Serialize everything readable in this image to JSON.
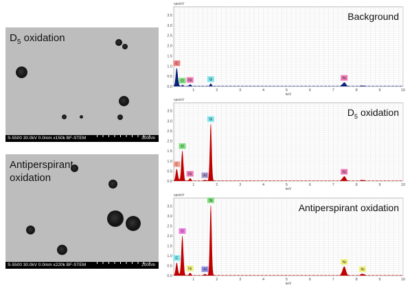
{
  "images": [
    {
      "title_main": "D",
      "title_sub": "5",
      "title_rest": " oxidation",
      "info": "S-5500 30.0kV 0.0mm x150k BF-STEM",
      "scale": "300nm"
    },
    {
      "title_main": "Antiperspirant",
      "title_sub": "",
      "title_rest": "oxidation",
      "info": "S-5500 30.0kV 0.0mm x220k BF-STEM",
      "scale": "200nm"
    }
  ],
  "chart_data": [
    {
      "type": "area",
      "title": "Background",
      "ylabel": "cps/eV",
      "xlabel": "keV",
      "xlim": [
        0.15,
        10
      ],
      "ylim": [
        0,
        3.9
      ],
      "grid": true,
      "color": "#0a1f7a",
      "xticks": [
        "1",
        "2",
        "3",
        "4",
        "5",
        "6",
        "7",
        "8",
        "9",
        "10"
      ],
      "yticks": [
        "0.0",
        "0.5",
        "1.0",
        "1.5",
        "2.0",
        "2.5",
        "3.0",
        "3.5"
      ],
      "peaks": [
        {
          "keV": 0.28,
          "cps": 0.9,
          "label": "C",
          "color": "#f08080"
        },
        {
          "keV": 0.52,
          "cps": 0.05,
          "label": "O",
          "color": "#7fe07f"
        },
        {
          "keV": 0.85,
          "cps": 0.08,
          "label": "Ni",
          "color": "#f07ab8"
        },
        {
          "keV": 1.74,
          "cps": 0.12,
          "label": "Si",
          "color": "#7fe6ee"
        },
        {
          "keV": 7.47,
          "cps": 0.18,
          "label": "Ni",
          "color": "#f07ab8"
        },
        {
          "keV": 8.26,
          "cps": 0.03,
          "label": "",
          "color": ""
        }
      ]
    },
    {
      "type": "area",
      "title": "D",
      "title_sub": "5",
      "title_rest": " oxidation",
      "ylabel": "cps/eV",
      "xlabel": "keV",
      "xlim": [
        0.15,
        10
      ],
      "ylim": [
        0,
        3.9
      ],
      "grid": true,
      "color": "#c00000",
      "xticks": [
        "1",
        "2",
        "3",
        "4",
        "5",
        "6",
        "7",
        "8",
        "9",
        "10"
      ],
      "yticks": [
        "0.0",
        "0.5",
        "1.0",
        "1.5",
        "2.0",
        "2.5",
        "3.0",
        "3.5"
      ],
      "peaks": [
        {
          "keV": 0.28,
          "cps": 0.6,
          "label": "C",
          "color": "#f4a090"
        },
        {
          "keV": 0.52,
          "cps": 1.5,
          "label": "O",
          "color": "#7fe07f"
        },
        {
          "keV": 0.85,
          "cps": 0.12,
          "label": "Ni",
          "color": "#f07ab8"
        },
        {
          "keV": 1.49,
          "cps": 0.05,
          "label": "Al",
          "color": "#a99bd0"
        },
        {
          "keV": 1.74,
          "cps": 2.85,
          "label": "Si",
          "color": "#7fe6ee"
        },
        {
          "keV": 7.47,
          "cps": 0.22,
          "label": "Ni",
          "color": "#f07ab8"
        },
        {
          "keV": 8.26,
          "cps": 0.04,
          "label": "",
          "color": ""
        }
      ]
    },
    {
      "type": "area",
      "title": "Antiperspirant oxidation",
      "ylabel": "cps/eV",
      "xlabel": "keV",
      "xlim": [
        0.15,
        10
      ],
      "ylim": [
        0,
        3.9
      ],
      "grid": true,
      "color": "#c00000",
      "xticks": [
        "1",
        "2",
        "3",
        "4",
        "5",
        "6",
        "7",
        "8",
        "9",
        "10"
      ],
      "yticks": [
        "0.0",
        "0.5",
        "1.0",
        "1.5",
        "2.0",
        "2.5",
        "3.0",
        "3.5"
      ],
      "peaks": [
        {
          "keV": 0.28,
          "cps": 0.65,
          "label": "C",
          "color": "#7fe6ee"
        },
        {
          "keV": 0.52,
          "cps": 2.0,
          "label": "O",
          "color": "#f07ae0"
        },
        {
          "keV": 0.85,
          "cps": 0.12,
          "label": "Ni",
          "color": "#f0f07a"
        },
        {
          "keV": 1.49,
          "cps": 0.08,
          "label": "Al",
          "color": "#8f8fe8"
        },
        {
          "keV": 1.74,
          "cps": 3.55,
          "label": "Si",
          "color": "#7fe07f"
        },
        {
          "keV": 7.47,
          "cps": 0.45,
          "label": "Ni",
          "color": "#f0f07a"
        },
        {
          "keV": 8.26,
          "cps": 0.08,
          "label": "Ni",
          "color": "#f0f07a"
        }
      ]
    }
  ]
}
